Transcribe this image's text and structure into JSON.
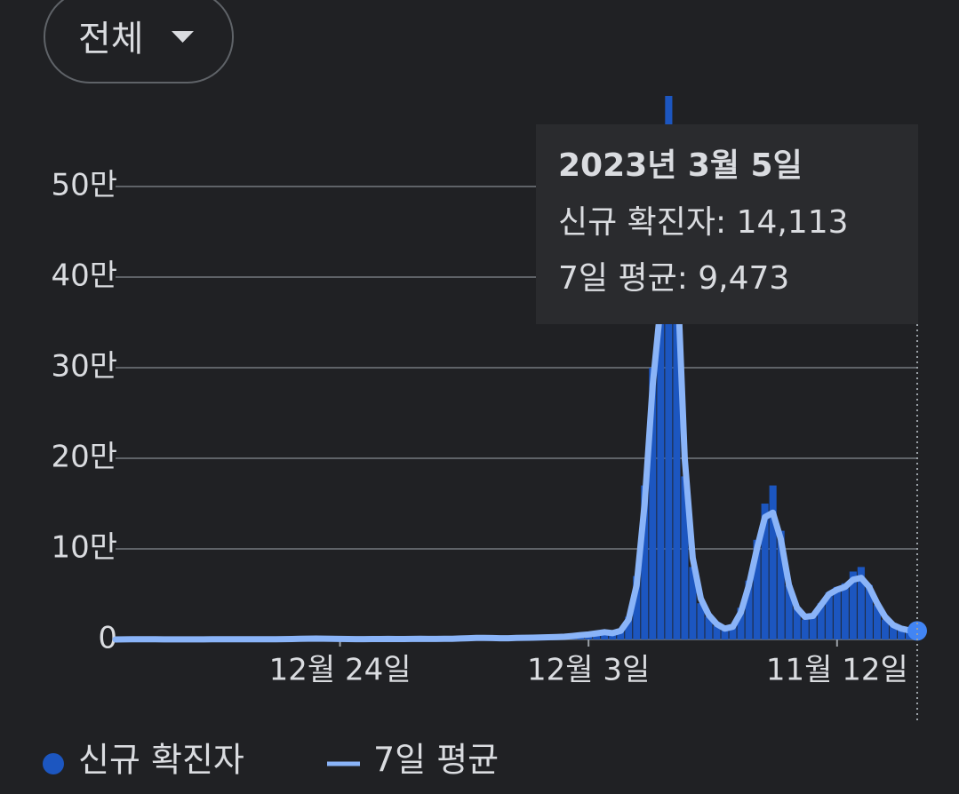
{
  "filter": {
    "label": "전체"
  },
  "chart_data": {
    "type": "bar-line",
    "categories": [
      null,
      null,
      null,
      null,
      null,
      null,
      null,
      null,
      null,
      null,
      null,
      null,
      null,
      null,
      null,
      null,
      null,
      null,
      null,
      null,
      null,
      null,
      null,
      null,
      null,
      null,
      null,
      null,
      "12월 24일",
      null,
      null,
      null,
      null,
      null,
      null,
      null,
      null,
      null,
      null,
      null,
      null,
      null,
      null,
      null,
      null,
      null,
      null,
      null,
      null,
      null,
      null,
      null,
      null,
      null,
      null,
      null,
      null,
      null,
      null,
      "12월 3일",
      null,
      null,
      null,
      null,
      null,
      null,
      null,
      null,
      null,
      null,
      null,
      null,
      null,
      null,
      null,
      null,
      null,
      null,
      null,
      null,
      null,
      null,
      null,
      null,
      null,
      null,
      null,
      null,
      null,
      null,
      "11월 12일",
      null,
      null,
      null,
      null,
      null,
      null,
      null,
      null,
      null,
      null
    ],
    "series": [
      {
        "name": "신규 확진자",
        "color": "#1c56c0",
        "values": [
          50,
          100,
          300,
          600,
          200,
          100,
          80,
          60,
          50,
          60,
          50,
          100,
          200,
          300,
          400,
          300,
          200,
          150,
          150,
          200,
          300,
          400,
          500,
          700,
          900,
          1000,
          900,
          700,
          600,
          500,
          400,
          400,
          500,
          500,
          600,
          500,
          500,
          600,
          700,
          600,
          600,
          700,
          800,
          1200,
          1500,
          1700,
          1800,
          1500,
          1300,
          1400,
          1700,
          1900,
          2000,
          2200,
          2500,
          2800,
          3000,
          4000,
          5000,
          5500,
          7000,
          6000,
          5000,
          10000,
          25000,
          70000,
          170000,
          300000,
          390000,
          600000,
          380000,
          180000,
          80000,
          40000,
          25000,
          15000,
          10000,
          15000,
          35000,
          65000,
          110000,
          150000,
          170000,
          120000,
          60000,
          35000,
          22000,
          25000,
          40000,
          52000,
          58000,
          62000,
          75000,
          80000,
          60000,
          38000,
          22000,
          15000,
          12000,
          11000,
          14113
        ]
      },
      {
        "name": "7일 평균",
        "color": "#8ab4f8",
        "values": [
          30,
          60,
          150,
          300,
          250,
          150,
          90,
          70,
          60,
          60,
          60,
          90,
          160,
          250,
          330,
          300,
          220,
          170,
          160,
          190,
          280,
          380,
          480,
          650,
          850,
          950,
          900,
          750,
          620,
          520,
          430,
          420,
          480,
          500,
          560,
          520,
          520,
          580,
          650,
          620,
          620,
          700,
          800,
          1100,
          1400,
          1650,
          1750,
          1550,
          1350,
          1400,
          1650,
          1850,
          2000,
          2200,
          2450,
          2750,
          3000,
          3800,
          4800,
          5500,
          6800,
          8000,
          7000,
          9500,
          22000,
          60000,
          150000,
          280000,
          370000,
          560000,
          420000,
          200000,
          90000,
          45000,
          27000,
          17000,
          12000,
          14000,
          30000,
          60000,
          100000,
          135000,
          140000,
          110000,
          60000,
          35000,
          25000,
          26000,
          38000,
          50000,
          55000,
          58000,
          66000,
          68000,
          58000,
          40000,
          25000,
          16000,
          12000,
          10000,
          9473
        ]
      }
    ],
    "ylim": [
      0,
      500000
    ],
    "yticks": [
      0,
      {
        "value": 100000,
        "label": "10만"
      },
      {
        "value": 200000,
        "label": "20만"
      },
      {
        "value": 300000,
        "label": "30만"
      },
      {
        "value": 400000,
        "label": "40만"
      },
      {
        "value": 500000,
        "label": "50만"
      }
    ],
    "grid": true,
    "tooltip": {
      "title": "2023년 3월 5일",
      "rows": [
        "신규 확진자: 14,113",
        "7일 평균: 9,473"
      ]
    }
  }
}
